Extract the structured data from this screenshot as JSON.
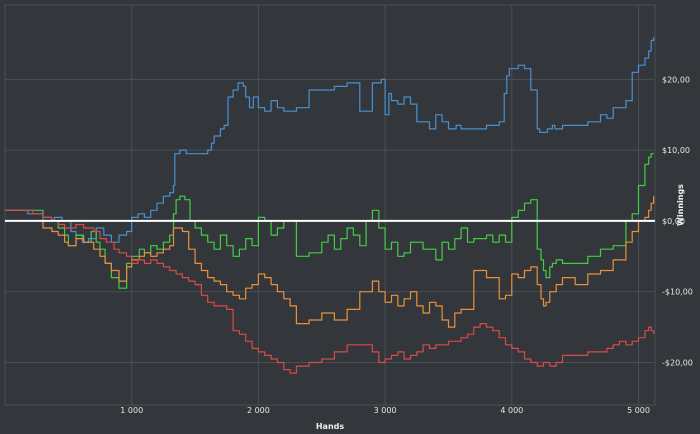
{
  "chart_data": {
    "type": "line",
    "xlabel": "Hands",
    "ylabel": "Winnings",
    "xlim": [
      0,
      5130
    ],
    "ylim": [
      -26,
      30.5
    ],
    "x_ticks": [
      {
        "value": 1000,
        "label": "1 000"
      },
      {
        "value": 2000,
        "label": "2 000"
      },
      {
        "value": 3000,
        "label": "3 000"
      },
      {
        "value": 4000,
        "label": "4 000"
      },
      {
        "value": 5000,
        "label": "5 000"
      }
    ],
    "y_ticks": [
      {
        "value": 20,
        "label": "$20,00"
      },
      {
        "value": 10,
        "label": "$10,00"
      },
      {
        "value": 0,
        "label": "$0,00"
      },
      {
        "value": -10,
        "label": "-$10,00"
      },
      {
        "value": -20,
        "label": "-$20,00"
      }
    ],
    "grid": true,
    "y_axis_side": "right",
    "zero_line_color": "#ffffff",
    "background_color": "#33373b",
    "grid_color": "#4a4f54",
    "series": [
      {
        "color": "#4a90d0",
        "x": [
          0,
          80,
          180,
          300,
          390,
          450,
          520,
          560,
          610,
          660,
          720,
          780,
          840,
          900,
          960,
          1000,
          1050,
          1100,
          1150,
          1200,
          1250,
          1300,
          1330,
          1340,
          1380,
          1430,
          1500,
          1600,
          1630,
          1650,
          1700,
          1730,
          1760,
          1800,
          1840,
          1880,
          1900,
          1930,
          1960,
          2000,
          2050,
          2100,
          2150,
          2200,
          2300,
          2400,
          2500,
          2600,
          2700,
          2800,
          2900,
          2970,
          3000,
          3030,
          3050,
          3100,
          3150,
          3200,
          3250,
          3300,
          3350,
          3400,
          3450,
          3500,
          3560,
          3600,
          3700,
          3800,
          3900,
          3940,
          3960,
          3980,
          4000,
          4050,
          4100,
          4150,
          4200,
          4220,
          4250,
          4280,
          4300,
          4320,
          4340,
          4400,
          4450,
          4500,
          4600,
          4700,
          4750,
          4800,
          4900,
          4950,
          5000,
          5050,
          5080,
          5100,
          5120
        ],
        "y": [
          1.5,
          1.5,
          1.0,
          0.0,
          0.5,
          0.0,
          -1.5,
          -2.0,
          -3.0,
          -2.5,
          -1.0,
          -2.0,
          -3.0,
          -2.0,
          -1.5,
          0.5,
          1.0,
          0.5,
          1.5,
          2.5,
          3.5,
          4.0,
          5.0,
          9.5,
          10.0,
          9.5,
          9.5,
          10.0,
          11.0,
          12.0,
          13.0,
          13.5,
          17.5,
          18.5,
          19.5,
          19.0,
          17.5,
          16.0,
          17.5,
          16.0,
          15.5,
          17.0,
          16.0,
          15.5,
          16.0,
          18.5,
          18.5,
          19.0,
          19.5,
          15.5,
          19.5,
          20.0,
          15.0,
          18.0,
          17.0,
          16.5,
          17.5,
          16.5,
          14.0,
          14.0,
          13.0,
          15.0,
          14.0,
          13.0,
          13.5,
          13.0,
          13.0,
          13.5,
          14.0,
          18.0,
          20.5,
          21.5,
          21.5,
          22.0,
          21.5,
          18.5,
          13.0,
          12.5,
          12.5,
          13.0,
          13.0,
          13.5,
          13.0,
          13.5,
          13.5,
          13.5,
          14.0,
          15.0,
          14.5,
          16.0,
          17.0,
          21.0,
          22.0,
          23.0,
          24.0,
          25.5,
          26.0
        ]
      },
      {
        "color": "#44cc44",
        "x": [
          0,
          80,
          150,
          220,
          300,
          370,
          420,
          470,
          500,
          560,
          620,
          680,
          720,
          750,
          790,
          840,
          900,
          960,
          1000,
          1060,
          1100,
          1150,
          1200,
          1250,
          1300,
          1330,
          1350,
          1380,
          1420,
          1460,
          1500,
          1550,
          1600,
          1650,
          1700,
          1750,
          1800,
          1850,
          1900,
          1950,
          2000,
          2050,
          2100,
          2150,
          2200,
          2300,
          2400,
          2500,
          2550,
          2600,
          2650,
          2700,
          2750,
          2800,
          2850,
          2900,
          2950,
          3000,
          3050,
          3100,
          3150,
          3200,
          3300,
          3400,
          3450,
          3500,
          3550,
          3600,
          3650,
          3700,
          3800,
          3850,
          3900,
          3950,
          4000,
          4050,
          4100,
          4150,
          4200,
          4230,
          4250,
          4270,
          4300,
          4320,
          4350,
          4400,
          4500,
          4600,
          4700,
          4800,
          4900,
          4950,
          5000,
          5050,
          5080,
          5100,
          5120
        ],
        "y": [
          1.5,
          1.5,
          1.5,
          1.5,
          0.5,
          0.0,
          -1.0,
          -2.0,
          -3.5,
          -2.0,
          -3.0,
          -1.5,
          -3.0,
          -4.0,
          -6.0,
          -8.0,
          -9.5,
          -6.0,
          -5.0,
          -4.0,
          -4.5,
          -3.5,
          -4.0,
          -3.0,
          -2.0,
          1.0,
          3.0,
          3.5,
          3.0,
          0.0,
          -1.0,
          -2.0,
          -3.0,
          -4.0,
          -2.0,
          -3.5,
          -5.0,
          -4.0,
          -2.5,
          -3.5,
          0.5,
          0.0,
          -2.0,
          -1.0,
          0.0,
          -5.0,
          -4.5,
          -3.0,
          -2.0,
          -4.0,
          -2.5,
          -1.0,
          -2.0,
          -3.5,
          0.0,
          1.5,
          -1.0,
          -4.0,
          -3.0,
          -5.0,
          -4.5,
          -3.0,
          -4.0,
          -5.5,
          -3.0,
          -4.0,
          -2.5,
          -1.0,
          -3.0,
          -2.5,
          -2.0,
          -3.0,
          -2.0,
          -3.0,
          0.5,
          1.5,
          2.5,
          3.0,
          -4.0,
          -5.5,
          -7.0,
          -8.0,
          -6.5,
          -6.0,
          -5.5,
          -6.0,
          -6.0,
          -5.0,
          -4.0,
          -3.5,
          0.0,
          1.0,
          5.0,
          8.0,
          9.0,
          9.5,
          9.5
        ]
      },
      {
        "color": "#e8913a",
        "x": [
          0,
          80,
          150,
          220,
          300,
          370,
          420,
          470,
          500,
          560,
          620,
          700,
          750,
          790,
          840,
          900,
          960,
          1000,
          1060,
          1100,
          1150,
          1200,
          1250,
          1300,
          1330,
          1360,
          1400,
          1450,
          1500,
          1550,
          1600,
          1650,
          1700,
          1750,
          1800,
          1850,
          1900,
          1950,
          2000,
          2050,
          2100,
          2150,
          2200,
          2250,
          2300,
          2400,
          2500,
          2600,
          2700,
          2800,
          2900,
          2950,
          3000,
          3050,
          3100,
          3150,
          3200,
          3250,
          3300,
          3350,
          3400,
          3450,
          3500,
          3550,
          3600,
          3700,
          3800,
          3900,
          3950,
          4000,
          4050,
          4100,
          4150,
          4200,
          4230,
          4250,
          4270,
          4300,
          4350,
          4400,
          4500,
          4600,
          4700,
          4800,
          4900,
          4950,
          5000,
          5050,
          5080,
          5100,
          5120
        ],
        "y": [
          0.0,
          0.0,
          0.0,
          0.0,
          -1.0,
          -1.5,
          -2.0,
          -3.0,
          -3.5,
          -2.5,
          -3.0,
          -4.0,
          -5.0,
          -6.0,
          -7.0,
          -8.5,
          -6.5,
          -5.5,
          -5.0,
          -4.5,
          -5.0,
          -4.5,
          -4.0,
          -3.5,
          -1.0,
          -1.0,
          -1.5,
          -4.0,
          -6.0,
          -7.0,
          -8.0,
          -8.5,
          -9.0,
          -10.0,
          -10.5,
          -11.0,
          -9.5,
          -9.0,
          -7.5,
          -8.0,
          -9.0,
          -10.0,
          -11.0,
          -12.0,
          -14.5,
          -14.0,
          -13.0,
          -14.0,
          -12.5,
          -10.0,
          -8.5,
          -10.0,
          -11.5,
          -10.5,
          -12.0,
          -11.0,
          -10.0,
          -12.0,
          -13.0,
          -11.5,
          -12.0,
          -14.0,
          -15.0,
          -13.0,
          -12.5,
          -7.0,
          -8.0,
          -11.0,
          -10.5,
          -7.5,
          -8.0,
          -7.0,
          -6.5,
          -9.0,
          -11.0,
          -12.0,
          -11.5,
          -10.0,
          -9.0,
          -8.0,
          -9.0,
          -7.5,
          -7.0,
          -5.5,
          -3.0,
          -1.5,
          0.0,
          0.5,
          1.5,
          2.5,
          3.5
        ]
      },
      {
        "color": "#d94a4a",
        "x": [
          0,
          80,
          150,
          220,
          300,
          370,
          420,
          470,
          500,
          560,
          620,
          700,
          750,
          800,
          860,
          900,
          960,
          1000,
          1050,
          1100,
          1150,
          1200,
          1250,
          1300,
          1350,
          1400,
          1450,
          1500,
          1550,
          1600,
          1650,
          1700,
          1750,
          1800,
          1850,
          1900,
          1950,
          2000,
          2050,
          2100,
          2150,
          2200,
          2250,
          2300,
          2400,
          2500,
          2600,
          2700,
          2800,
          2900,
          2950,
          3000,
          3050,
          3100,
          3150,
          3200,
          3250,
          3300,
          3350,
          3400,
          3500,
          3600,
          3650,
          3700,
          3750,
          3800,
          3850,
          3900,
          3950,
          4000,
          4050,
          4100,
          4150,
          4200,
          4250,
          4300,
          4350,
          4400,
          4500,
          4600,
          4700,
          4750,
          4800,
          4850,
          4900,
          4950,
          5000,
          5050,
          5080,
          5100,
          5120
        ],
        "y": [
          1.5,
          1.5,
          1.5,
          1.0,
          0.5,
          0.0,
          -0.5,
          -1.0,
          -1.0,
          -0.5,
          -1.0,
          -1.5,
          -2.5,
          -3.0,
          -4.0,
          -4.5,
          -5.0,
          -6.0,
          -5.5,
          -6.0,
          -5.5,
          -6.0,
          -6.5,
          -7.0,
          -7.5,
          -8.0,
          -8.5,
          -9.0,
          -10.5,
          -11.5,
          -12.0,
          -12.0,
          -12.5,
          -15.5,
          -16.0,
          -17.0,
          -18.0,
          -18.5,
          -19.0,
          -19.5,
          -20.0,
          -21.0,
          -21.5,
          -20.5,
          -20.0,
          -19.5,
          -18.5,
          -17.5,
          -17.5,
          -18.5,
          -20.0,
          -19.5,
          -19.0,
          -18.5,
          -19.5,
          -19.0,
          -18.5,
          -17.5,
          -18.0,
          -17.5,
          -17.0,
          -16.5,
          -16.0,
          -15.0,
          -14.5,
          -15.0,
          -15.5,
          -16.5,
          -17.5,
          -18.0,
          -18.5,
          -19.5,
          -20.0,
          -20.5,
          -20.0,
          -20.5,
          -20.0,
          -19.0,
          -19.0,
          -18.5,
          -18.5,
          -18.0,
          -17.5,
          -17.0,
          -17.5,
          -17.0,
          -16.5,
          -15.5,
          -15.0,
          -15.5,
          -16.0
        ]
      }
    ]
  }
}
